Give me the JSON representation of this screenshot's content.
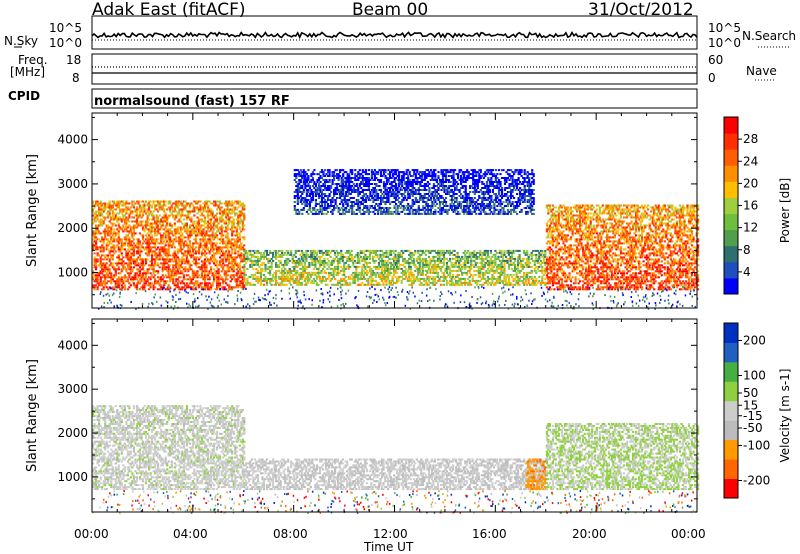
{
  "header": {
    "station": "Adak East (fitACF)",
    "beam": "Beam 00",
    "date": "31/Oct/2012"
  },
  "strips": {
    "nsky_label": "N.Sky",
    "nsearch_label": "N.Search",
    "nsky_top_tick": "10^5",
    "nsky_bottom_tick": "10^0",
    "freq_label_1": "Freq.",
    "freq_label_2": "[MHz]",
    "freq_ticks": [
      "18",
      "8"
    ],
    "nave_label": "Nave",
    "nave_ticks": [
      "60",
      "0"
    ],
    "cpid_label": "CPID",
    "cpid_text": "normalsound (fast) 157 RF"
  },
  "x_axis": {
    "label": "Time UT",
    "ticks": [
      "00:00",
      "04:00",
      "08:00",
      "12:00",
      "16:00",
      "20:00",
      "00:00"
    ]
  },
  "colors": {
    "power_scale": [
      "#0000ff",
      "#1f4fbf",
      "#2f6f6f",
      "#4f9f4f",
      "#6fbf3f",
      "#9fcf3f",
      "#ffbf00",
      "#ff8f00",
      "#ff5f00",
      "#ff2f00",
      "#ff0000"
    ],
    "velocity_scale": [
      "#ff0000",
      "#ff6600",
      "#ff9900",
      "#bcbcbc",
      "#cccccc",
      "#8fd040",
      "#44b044",
      "#2060c0",
      "#0030c0"
    ]
  },
  "chart_data": [
    {
      "type": "heatmap",
      "title": "Power",
      "ylabel": "Slant Range [km]",
      "xlabel": "",
      "x_range_hours": [
        0,
        24
      ],
      "ylim": [
        200,
        4600
      ],
      "y_ticks": [
        1000,
        2000,
        3000,
        4000
      ],
      "colorbar": {
        "label": "Power [dB]",
        "range": [
          0,
          32
        ],
        "ticks": [
          4,
          8,
          12,
          16,
          20,
          24,
          28
        ]
      },
      "scatter_regions": [
        {
          "t_start": 0.0,
          "t_end": 6.0,
          "range_min": 600,
          "range_max": 2600,
          "level": 0.85
        },
        {
          "t_start": 6.0,
          "t_end": 18.0,
          "range_min": 700,
          "range_max": 1500,
          "level": 0.55
        },
        {
          "t_start": 8.0,
          "t_end": 17.5,
          "range_min": 2300,
          "range_max": 3300,
          "level": 0.15
        },
        {
          "t_start": 18.0,
          "t_end": 24.0,
          "range_min": 600,
          "range_max": 2500,
          "level": 0.85
        }
      ]
    },
    {
      "type": "heatmap",
      "title": "Velocity",
      "ylabel": "Slant Range [km]",
      "xlabel": "Time UT",
      "x_range_hours": [
        0,
        24
      ],
      "ylim": [
        200,
        4600
      ],
      "y_ticks": [
        1000,
        2000,
        3000,
        4000
      ],
      "colorbar": {
        "label": "Velocity [m s-1]",
        "range": [
          -250,
          250
        ],
        "ticks": [
          -200,
          -100,
          -50,
          -15,
          15,
          50,
          100,
          200
        ]
      },
      "scatter_regions": [
        {
          "t_start": 0.0,
          "t_end": 6.0,
          "range_min": 700,
          "range_max": 2600,
          "velocity": 0
        },
        {
          "t_start": 6.0,
          "t_end": 18.0,
          "range_min": 700,
          "range_max": 1400,
          "velocity": -20
        },
        {
          "t_start": 17.2,
          "t_end": 18.0,
          "range_min": 700,
          "range_max": 1400,
          "velocity": -120
        },
        {
          "t_start": 18.0,
          "t_end": 24.0,
          "range_min": 700,
          "range_max": 2200,
          "velocity": 30
        }
      ]
    }
  ]
}
